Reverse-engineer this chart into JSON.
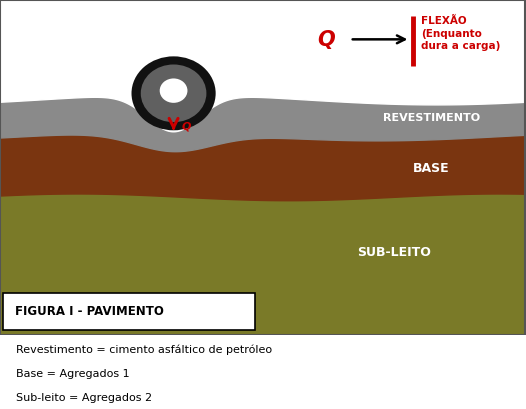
{
  "bg_color": "#ffffff",
  "layer_colors": {
    "revestimento": "#8a8a8a",
    "base": "#7a3510",
    "subleito": "#7a7a28"
  },
  "layer_labels": {
    "revestimento": "REVESTIMENTO",
    "base": "BASE",
    "subleito": "SUB-LEITO"
  },
  "label_color": "#ffffff",
  "red_color": "#cc0000",
  "black_color": "#000000",
  "flexao_label": "FLEXÃO\n(Enquanto\ndura a carga)",
  "q_label": "Q",
  "q_down_label": "Q",
  "caption_lines": [
    "Revestimento = cimento asfáltico de petróleo",
    "Base = Agregados 1",
    "Sub-leito = Agregados 2"
  ],
  "figure_caption": "FIGURA I - PAVIMENTO",
  "tire_outer_color": "#111111",
  "tire_mid_color": "#606060",
  "tire_hole_color": "#ffffff",
  "diagram_bg": "#ffffff",
  "border_color": "#555555"
}
